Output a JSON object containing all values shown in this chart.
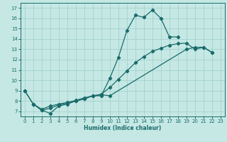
{
  "xlabel": "Humidex (Indice chaleur)",
  "xlim": [
    -0.5,
    23.5
  ],
  "ylim": [
    6.5,
    17.5
  ],
  "xticks": [
    0,
    1,
    2,
    3,
    4,
    5,
    6,
    7,
    8,
    9,
    10,
    11,
    12,
    13,
    14,
    15,
    16,
    17,
    18,
    19,
    20,
    21,
    22,
    23
  ],
  "yticks": [
    7,
    8,
    9,
    10,
    11,
    12,
    13,
    14,
    15,
    16,
    17
  ],
  "bg_color": "#c5e8e4",
  "grid_color": "#9ececa",
  "line_color": "#1a6b6b",
  "line1_x": [
    0,
    1,
    2,
    3,
    4,
    5,
    6,
    7,
    8,
    9,
    10,
    11,
    12,
    13,
    14,
    15,
    16,
    17,
    18
  ],
  "line1_y": [
    9.0,
    7.7,
    7.1,
    6.8,
    7.5,
    7.7,
    8.0,
    8.2,
    8.5,
    8.5,
    10.2,
    12.2,
    14.8,
    16.3,
    16.1,
    16.8,
    16.0,
    14.2,
    14.2
  ],
  "line2_x": [
    1,
    2,
    3,
    4,
    5,
    6,
    7,
    8,
    9,
    10,
    19,
    20,
    21,
    22
  ],
  "line2_y": [
    7.7,
    7.1,
    7.3,
    7.6,
    7.8,
    8.0,
    8.2,
    8.5,
    8.6,
    8.5,
    13.0,
    13.2,
    13.2,
    12.7
  ],
  "line3_x": [
    0,
    1,
    2,
    3,
    4,
    5,
    6,
    7,
    8,
    9,
    10,
    11,
    12,
    13,
    14,
    15,
    16,
    17,
    18,
    19,
    20,
    21,
    22
  ],
  "line3_y": [
    9.0,
    7.7,
    7.2,
    7.5,
    7.7,
    7.85,
    8.05,
    8.3,
    8.5,
    8.65,
    9.3,
    10.1,
    10.9,
    11.7,
    12.3,
    12.8,
    13.1,
    13.4,
    13.55,
    13.6,
    13.0,
    13.2,
    12.7
  ]
}
